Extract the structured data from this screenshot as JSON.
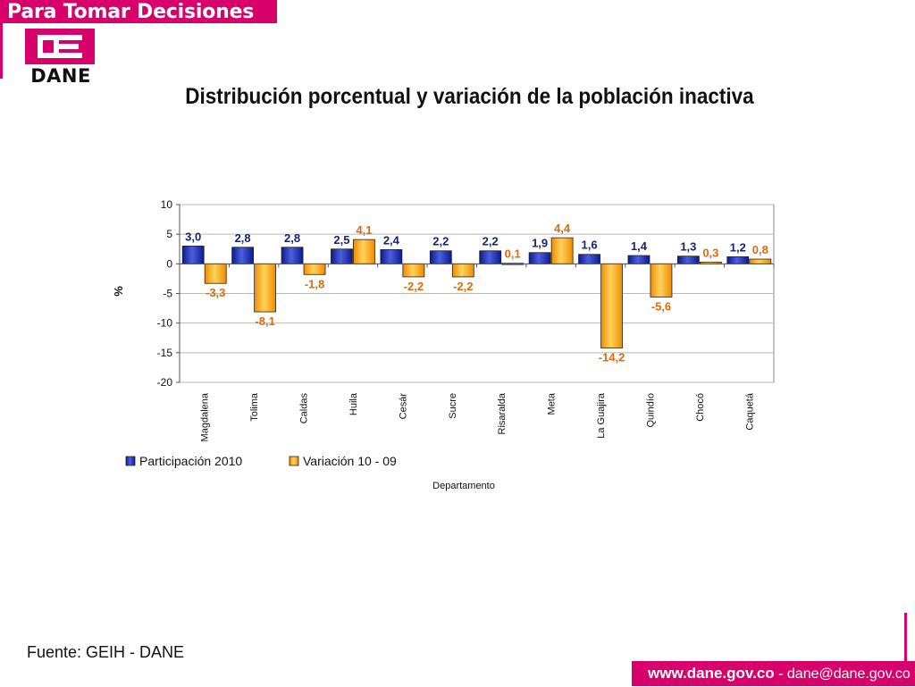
{
  "header": {
    "banner_text": "Para Tomar Decisiones",
    "logo_text": "DANE"
  },
  "slide": {
    "title": "Distribución porcentual y variación de la población inactiva"
  },
  "chart_data": {
    "type": "bar",
    "categories": [
      "Magdalena",
      "Tolima",
      "Caldas",
      "Huila",
      "Cesár",
      "Sucre",
      "Risaralda",
      "Meta",
      "La Guajira",
      "Quindío",
      "Chocó",
      "Caquetá"
    ],
    "series": [
      {
        "name": "Participación 2010",
        "color": "#1c2fb3",
        "values": [
          3.0,
          2.8,
          2.8,
          2.5,
          2.4,
          2.2,
          2.2,
          1.9,
          1.6,
          1.4,
          1.3,
          1.2
        ],
        "labels": [
          "3,0",
          "2,8",
          "2,8",
          "2,5",
          "2,4",
          "2,2",
          "2,2",
          "1,9",
          "1,6",
          "1,4",
          "1,3",
          "1,2"
        ],
        "label_color": "#14237a"
      },
      {
        "name": "Variación 10 - 09",
        "color": "#f7a51a",
        "values": [
          -3.3,
          -8.1,
          -1.8,
          4.1,
          -2.2,
          -2.2,
          0.1,
          4.4,
          -14.2,
          -5.6,
          0.3,
          0.8
        ],
        "labels": [
          "-3,3",
          "-8,1",
          "-1,8",
          "4,1",
          "-2,2",
          "-2,2",
          "0,1",
          "4,4",
          "-14,2",
          "-5,6",
          "0,3",
          "0,8"
        ],
        "label_color": "#e06a0a"
      }
    ],
    "title": "",
    "xlabel": "Departamento",
    "ylabel": "%",
    "ylim": [
      -20,
      10
    ],
    "yticks": [
      "10",
      "5",
      "0",
      "-5",
      "-10",
      "-15",
      "-20"
    ],
    "ytick_values": [
      10,
      5,
      0,
      -5,
      -10,
      -15,
      -20
    ],
    "grid": true,
    "legend_position": "bottom-left"
  },
  "footer": {
    "source": "Fuente: GEIH - DANE",
    "website": "www.dane.gov.co",
    "separator": " - ",
    "email": "dane@dane.gov.co"
  }
}
